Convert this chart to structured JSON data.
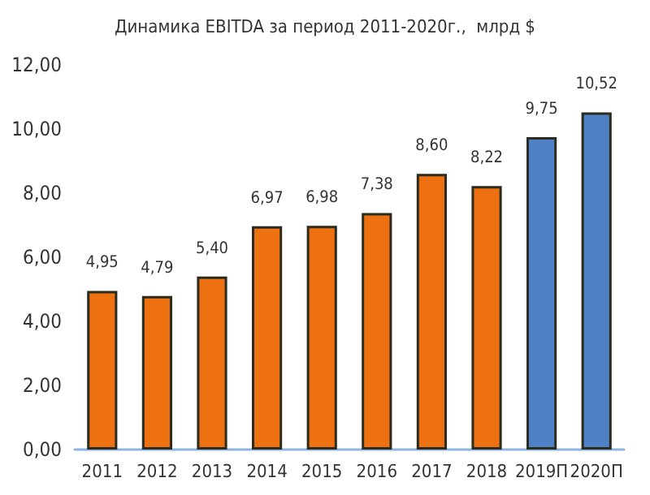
{
  "chart_data": {
    "type": "bar",
    "title": "Динамика EBITDA за период 2011-2020г.,  млрд $",
    "categories": [
      "2011",
      "2012",
      "2013",
      "2014",
      "2015",
      "2016",
      "2017",
      "2018",
      "2019П",
      "2020П"
    ],
    "values": [
      4.95,
      4.79,
      5.4,
      6.97,
      6.98,
      7.38,
      8.6,
      8.22,
      9.75,
      10.52
    ],
    "colors": [
      "#ed7011",
      "#ed7011",
      "#ed7011",
      "#ed7011",
      "#ed7011",
      "#ed7011",
      "#ed7011",
      "#ed7011",
      "#4f81c6",
      "#4f81c6"
    ],
    "value_labels": [
      "4,95",
      "4,79",
      "5,40",
      "6,97",
      "6,98",
      "7,38",
      "8,60",
      "8,22",
      "9,75",
      "10,52"
    ],
    "ylim": [
      0,
      12
    ],
    "yticks": [
      {
        "value": 0,
        "label": "0,00"
      },
      {
        "value": 2,
        "label": "2,00"
      },
      {
        "value": 4,
        "label": "4,00"
      },
      {
        "value": 6,
        "label": "6,00"
      },
      {
        "value": 8,
        "label": "8,00"
      },
      {
        "value": 10,
        "label": "10,00"
      },
      {
        "value": 12,
        "label": "12,00"
      }
    ],
    "grid": false
  }
}
